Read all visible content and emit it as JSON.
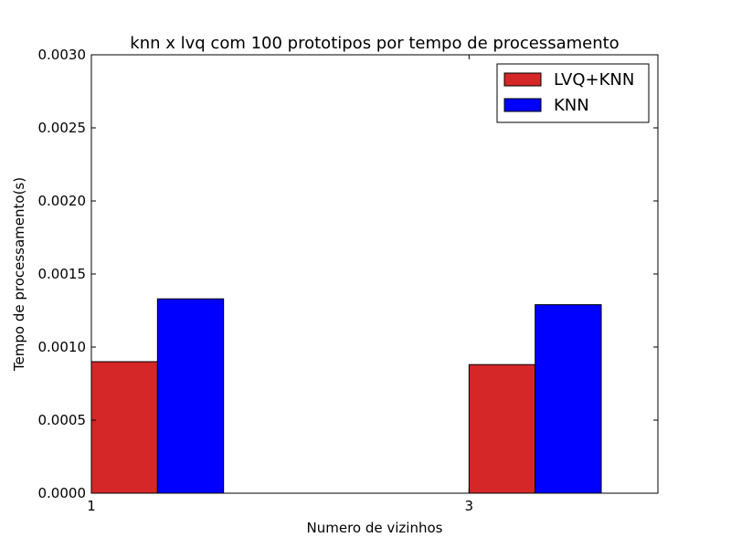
{
  "chart_data": {
    "type": "bar",
    "title": "knn x lvq com 100 prototipos por tempo de processamento",
    "xlabel": "Numero de vizinhos",
    "ylabel": "Tempo de processamento(s)",
    "x": [
      1,
      3
    ],
    "x_tick_labels": [
      "1",
      "3"
    ],
    "xlim": [
      1,
      4
    ],
    "ylim": [
      0,
      0.003
    ],
    "y_ticks": [
      0.0,
      0.0005,
      0.001,
      0.0015,
      0.002,
      0.0025,
      0.003
    ],
    "y_tick_labels": [
      "0.0000",
      "0.0005",
      "0.0010",
      "0.0015",
      "0.0020",
      "0.0025",
      "0.0030"
    ],
    "bar_width": 0.35,
    "grid": false,
    "legend_position": "top-right",
    "series": [
      {
        "name": "LVQ+KNN",
        "color": "#d62728",
        "values": [
          0.0009,
          0.00088
        ]
      },
      {
        "name": "KNN",
        "color": "#0000ff",
        "values": [
          0.00133,
          0.00129
        ]
      }
    ]
  }
}
